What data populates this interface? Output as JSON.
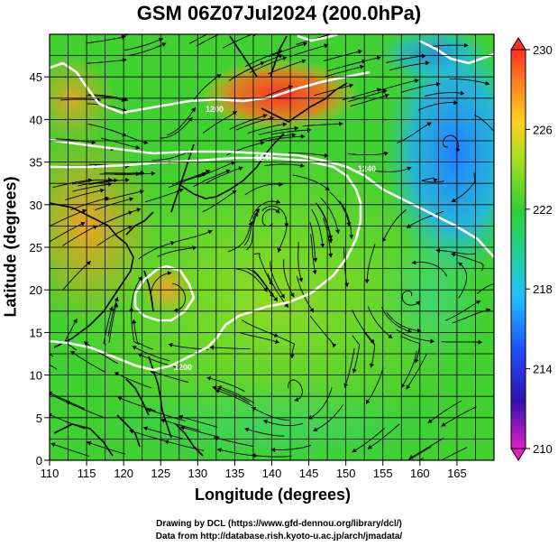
{
  "title": "GSM 06Z07Jul2024 (200.0hPa)",
  "xaxis": {
    "label": "Longitude (degrees)",
    "ticks": [
      "110",
      "115",
      "120",
      "125",
      "130",
      "135",
      "140",
      "145",
      "150",
      "155",
      "160",
      "165"
    ],
    "range": [
      110,
      170
    ]
  },
  "yaxis": {
    "label": "Latitude  (degrees)",
    "ticks": [
      "0",
      "5",
      "10",
      "15",
      "20",
      "25",
      "30",
      "35",
      "40",
      "45"
    ],
    "range": [
      0,
      50
    ]
  },
  "colorbar": {
    "ticks": [
      "210",
      "214",
      "218",
      "222",
      "226",
      "230"
    ],
    "range": [
      210,
      230
    ],
    "colors": [
      "#e020c0",
      "#3020c0",
      "#2060ff",
      "#20c0ff",
      "#20d0a0",
      "#30d030",
      "#90e020",
      "#ffd020",
      "#ff8020",
      "#ff3020"
    ]
  },
  "contours": [
    {
      "label": "1200",
      "value": 1200
    },
    {
      "label": "1240",
      "value": 1240
    },
    {
      "label": "1240",
      "value": 1240
    },
    {
      "label": "1200",
      "value": 1200
    }
  ],
  "credits": {
    "line1": "Drawing by DCL (https://www.gfd-dennou.org/library/dcl/)",
    "line2": "Data from http://database.rish.kyoto-u.ac.jp/arch/jmadata/"
  }
}
